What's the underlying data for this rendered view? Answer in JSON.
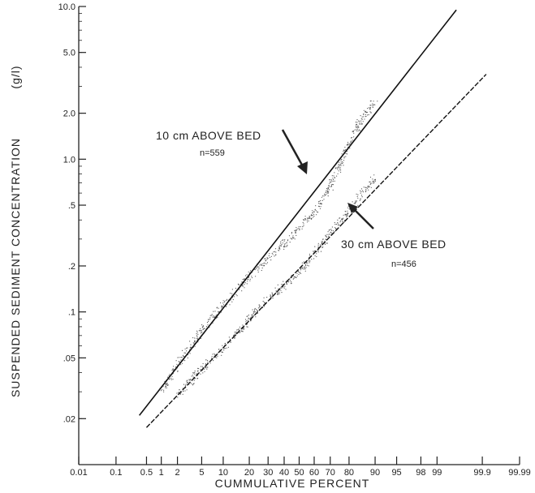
{
  "chart_data": {
    "type": "scatter",
    "title": "",
    "xlabel": "CUMMULATIVE PERCENT",
    "ylabel": "SUSPENDED SEDIMENT CONCENTRATION",
    "ylabel_unit": "(g/l)",
    "x_scale": "probability",
    "y_scale": "log",
    "xlim": [
      0.01,
      99.99
    ],
    "ylim": [
      0.01,
      10.0
    ],
    "x_ticks": [
      0.01,
      0.1,
      0.5,
      1,
      2,
      5,
      10,
      20,
      30,
      40,
      50,
      60,
      70,
      80,
      90,
      95,
      98,
      99,
      99.9,
      99.99
    ],
    "x_tick_labels": [
      "0.01",
      "0.1",
      "0.5",
      "1",
      "2",
      "5",
      "10",
      "20",
      "30",
      "40",
      "50",
      "60",
      "70",
      "80",
      "90",
      "95",
      "98",
      "99",
      "99.9",
      "99.99"
    ],
    "y_ticks": [
      10.0,
      5.0,
      2.0,
      1.0,
      0.5,
      0.2,
      0.1,
      0.05,
      0.02
    ],
    "y_tick_labels": [
      "10.0",
      "5.0",
      "2.0",
      "1.0",
      ".5",
      ".2",
      ".1",
      ".05",
      ".02"
    ],
    "grid": false,
    "series": [
      {
        "name": "10 cm ABOVE BED",
        "n_label": "n=559",
        "line": {
          "x": [
            0.35,
            99.6
          ],
          "y": [
            0.021,
            9.5
          ]
        },
        "points": {
          "x": [
            1,
            2,
            5,
            10,
            20,
            30,
            40,
            50,
            60,
            70,
            75,
            80,
            85,
            90
          ],
          "y": [
            0.03,
            0.045,
            0.075,
            0.11,
            0.17,
            0.22,
            0.28,
            0.35,
            0.45,
            0.65,
            0.9,
            1.25,
            1.8,
            2.4
          ]
        }
      },
      {
        "name": "30 cm ABOVE BED",
        "n_label": "n=456",
        "line": {
          "x": [
            0.5,
            99.92
          ],
          "y": [
            0.0175,
            3.6
          ]
        },
        "points": {
          "x": [
            2,
            5,
            10,
            20,
            30,
            40,
            50,
            60,
            70,
            80,
            85,
            90
          ],
          "y": [
            0.028,
            0.042,
            0.058,
            0.09,
            0.12,
            0.15,
            0.18,
            0.24,
            0.33,
            0.45,
            0.58,
            0.75
          ]
        }
      }
    ]
  }
}
